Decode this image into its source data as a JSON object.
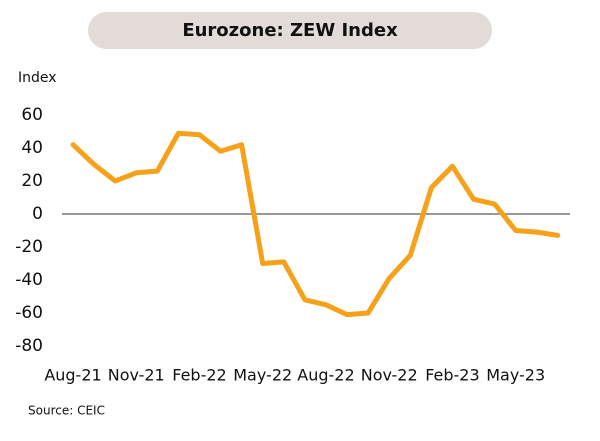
{
  "chart_data": {
    "type": "line",
    "title": "Eurozone: ZEW Index",
    "y_label": "Index",
    "source": "Source: CEIC",
    "categories": [
      "Aug-21",
      null,
      null,
      "Nov-21",
      null,
      null,
      "Feb-22",
      null,
      null,
      "May-22",
      null,
      null,
      "Aug-22",
      null,
      null,
      "Nov-22",
      null,
      null,
      "Feb-23",
      null,
      null,
      "May-23",
      null,
      null
    ],
    "values": [
      42,
      30,
      20,
      25,
      26,
      49,
      48,
      38,
      42,
      -30,
      -29,
      -52,
      -55,
      -61,
      -60,
      -39,
      -25,
      16,
      29,
      9,
      6,
      -10,
      -11,
      -13
    ],
    "color": "#f7a11a",
    "ylim": [
      -80,
      60
    ],
    "yticks": [
      -80,
      -60,
      -40,
      -20,
      0,
      20,
      40,
      60
    ]
  }
}
